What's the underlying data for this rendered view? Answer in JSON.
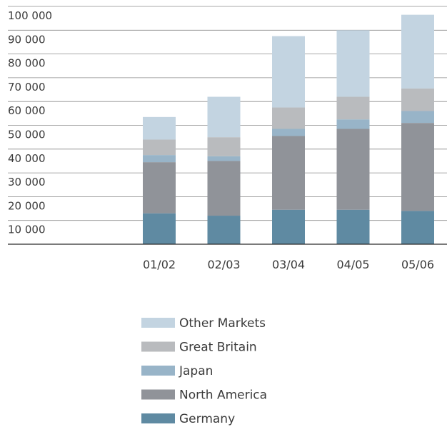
{
  "chart_data": {
    "type": "bar",
    "stacked": true,
    "categories": [
      "01/02",
      "02/03",
      "03/04",
      "04/05",
      "05/06"
    ],
    "series": [
      {
        "name": "Germany",
        "color": "#5f8aa2",
        "values": [
          13000,
          12000,
          14500,
          14500,
          14000
        ]
      },
      {
        "name": "North America",
        "color": "#909399",
        "values": [
          21500,
          23000,
          31000,
          34000,
          37000
        ]
      },
      {
        "name": "Japan",
        "color": "#98b4c8",
        "values": [
          3000,
          2000,
          3000,
          4000,
          5000
        ]
      },
      {
        "name": "Great Britain",
        "color": "#b9bbbe",
        "values": [
          6500,
          8000,
          9000,
          9500,
          9500
        ]
      },
      {
        "name": "Other Markets",
        "color": "#c3d4e1",
        "values": [
          9500,
          17000,
          30000,
          28000,
          31000
        ]
      }
    ],
    "y_ticks": [
      "10 000",
      "20 000",
      "30 000",
      "40 000",
      "50 000",
      "60 000",
      "70 000",
      "80 000",
      "90 000",
      "100 000"
    ],
    "ylim": [
      0,
      100000
    ],
    "grid": true,
    "legend_position": "bottom",
    "legend_order": [
      "Other Markets",
      "Great Britain",
      "Japan",
      "North America",
      "Germany"
    ]
  }
}
